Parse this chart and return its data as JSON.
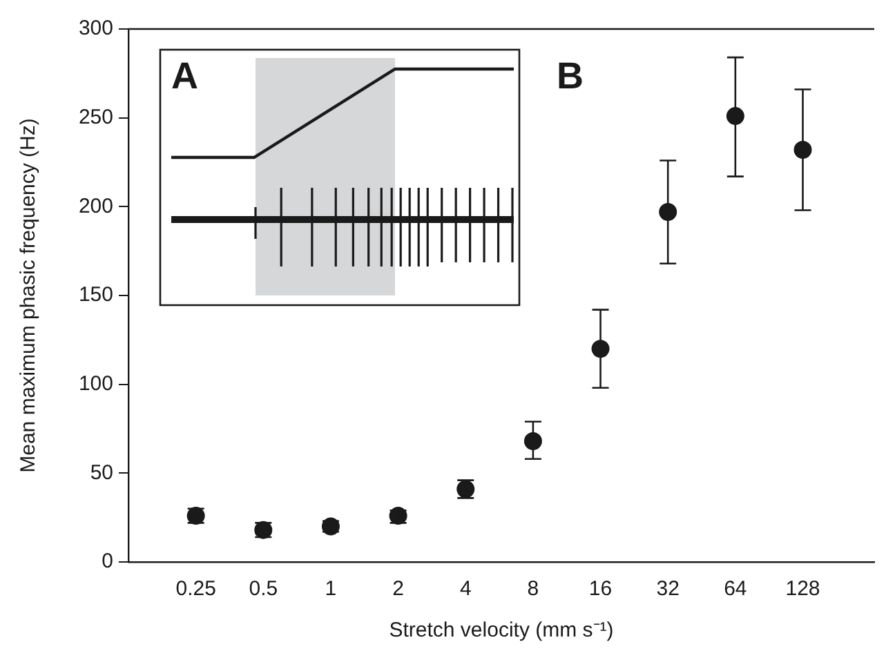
{
  "chart_data": {
    "type": "scatter",
    "xlabel": "Stretch velocity (mm s⁻¹)",
    "ylabel": "Mean maximum phasic frequency (Hz)",
    "categories": [
      "0.25",
      "0.5",
      "1",
      "2",
      "4",
      "8",
      "16",
      "32",
      "64",
      "128"
    ],
    "values": [
      26,
      18,
      20,
      26,
      41,
      68,
      120,
      197,
      251,
      232
    ],
    "errors": [
      [
        22,
        30
      ],
      [
        14,
        22
      ],
      [
        17,
        23
      ],
      [
        22,
        29
      ],
      [
        36,
        46
      ],
      [
        58,
        79
      ],
      [
        98,
        142
      ],
      [
        168,
        226
      ],
      [
        217,
        284
      ],
      [
        198,
        266
      ]
    ],
    "color": "#1a1a1a",
    "marker": "circle",
    "ylim": [
      0,
      300
    ],
    "yticks": [
      0,
      50,
      100,
      150,
      200,
      250,
      300
    ],
    "grid": false,
    "legend": false,
    "annotations": [
      "A",
      "B"
    ]
  }
}
